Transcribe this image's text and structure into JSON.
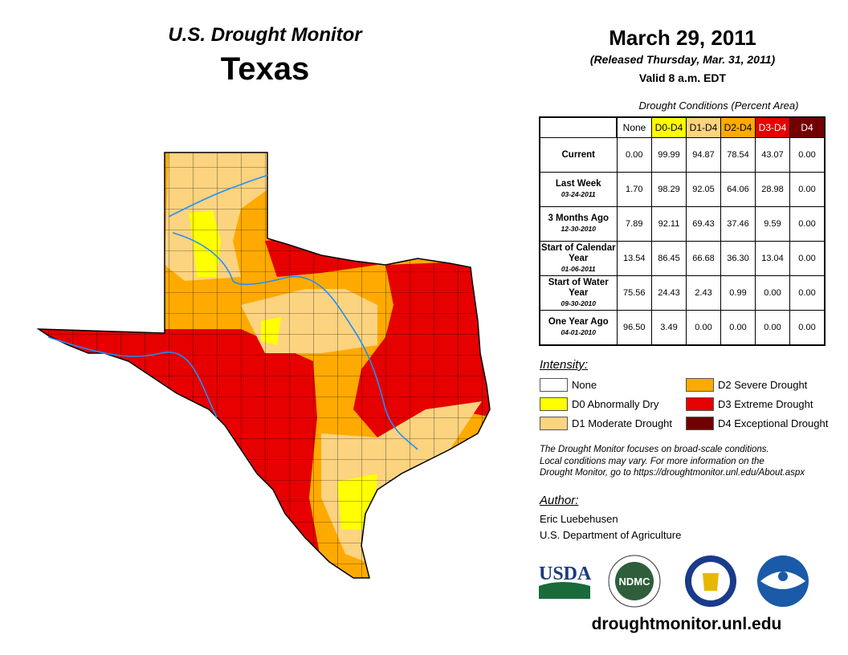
{
  "header": {
    "title": "U.S. Drought Monitor",
    "state": "Texas",
    "date": "March 29, 2011",
    "released": "(Released Thursday, Mar. 31, 2011)",
    "valid": "Valid 8 a.m. EDT"
  },
  "table": {
    "caption": "Drought Conditions (Percent Area)",
    "columns": [
      {
        "label": "None",
        "color": "#ffffff",
        "text": "#000"
      },
      {
        "label": "D0-D4",
        "color": "#ffff00",
        "text": "#000"
      },
      {
        "label": "D1-D4",
        "color": "#fcd37f",
        "text": "#000"
      },
      {
        "label": "D2-D4",
        "color": "#ffaa00",
        "text": "#000"
      },
      {
        "label": "D3-D4",
        "color": "#e60000",
        "text": "#fff"
      },
      {
        "label": "D4",
        "color": "#730000",
        "text": "#fff"
      }
    ],
    "rows": [
      {
        "label": "Current",
        "date": "",
        "values": [
          "0.00",
          "99.99",
          "94.87",
          "78.54",
          "43.07",
          "0.00"
        ]
      },
      {
        "label": "Last Week",
        "date": "03-24-2011",
        "values": [
          "1.70",
          "98.29",
          "92.05",
          "64.06",
          "28.98",
          "0.00"
        ]
      },
      {
        "label": "3 Months Ago",
        "date": "12-30-2010",
        "values": [
          "7.89",
          "92.11",
          "69.43",
          "37.46",
          "9.59",
          "0.00"
        ]
      },
      {
        "label": "Start of Calendar Year",
        "date": "01-06-2011",
        "values": [
          "13.54",
          "86.45",
          "66.68",
          "36.30",
          "13.04",
          "0.00"
        ]
      },
      {
        "label": "Start of Water Year",
        "date": "09-30-2010",
        "values": [
          "75.56",
          "24.43",
          "2.43",
          "0.99",
          "0.00",
          "0.00"
        ]
      },
      {
        "label": "One Year Ago",
        "date": "04-01-2010",
        "values": [
          "96.50",
          "3.49",
          "0.00",
          "0.00",
          "0.00",
          "0.00"
        ]
      }
    ]
  },
  "legend": {
    "title": "Intensity:",
    "items": [
      {
        "label": "None",
        "color": "#ffffff"
      },
      {
        "label": "D0 Abnormally Dry",
        "color": "#ffff00"
      },
      {
        "label": "D1 Moderate Drought",
        "color": "#fcd37f"
      },
      {
        "label": "D2 Severe Drought",
        "color": "#ffaa00"
      },
      {
        "label": "D3 Extreme Drought",
        "color": "#e60000"
      },
      {
        "label": "D4 Exceptional Drought",
        "color": "#730000"
      }
    ]
  },
  "note": [
    "The Drought Monitor focuses on broad-scale conditions.",
    "Local conditions may vary. For more information on the",
    "Drought Monitor, go to https://droughtmonitor.unl.edu/About.aspx"
  ],
  "author": {
    "title": "Author:",
    "name": "Eric Luebehusen",
    "org": "U.S. Department of Agriculture"
  },
  "logos": {
    "usda": "USDA",
    "ndmc": "NDMC",
    "noaa": "NOAA"
  },
  "url": "droughtmonitor.unl.edu"
}
